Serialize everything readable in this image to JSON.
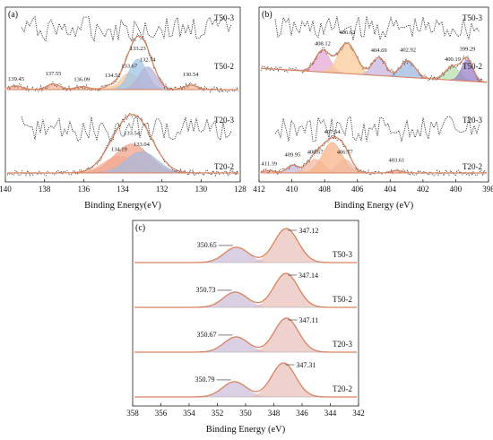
{
  "chart_data": [
    {
      "panel": "(a)",
      "type": "line",
      "xlabel": "Binding Energy(eV)",
      "xlim": [
        140,
        128
      ],
      "x_ticks": [
        140,
        138,
        136,
        134,
        132,
        130,
        128
      ],
      "series": [
        {
          "name": "T50-3",
          "fit": false,
          "peaks": []
        },
        {
          "name": "T50-2",
          "fit": true,
          "peaks": [
            {
              "label": "139.45",
              "center": 139.45,
              "height": 0.12,
              "width": 0.35,
              "color": "#f2b8a0"
            },
            {
              "label": "137.55",
              "center": 137.55,
              "height": 0.18,
              "width": 0.35,
              "color": "#f2b8a0"
            },
            {
              "label": "136.09",
              "center": 136.09,
              "height": 0.1,
              "width": 0.35,
              "color": "#f7c9a8"
            },
            {
              "label": "134.52",
              "center": 134.52,
              "height": 0.12,
              "width": 0.4,
              "color": "#f7d4b0"
            },
            {
              "label": "133.67",
              "center": 133.67,
              "height": 0.55,
              "width": 0.45,
              "color": "#f9c99a"
            },
            {
              "label": "133.23",
              "center": 133.23,
              "height": 1.0,
              "width": 0.45,
              "color": "#9fc6e6"
            },
            {
              "label": "132.74",
              "center": 132.74,
              "height": 0.75,
              "width": 0.45,
              "color": "#b7b3d8"
            },
            {
              "label": "130.54",
              "center": 130.54,
              "height": 0.15,
              "width": 0.35,
              "color": "#f2b8a0"
            }
          ]
        },
        {
          "name": "T20-3",
          "fit": false,
          "peaks": []
        },
        {
          "name": "T20-2",
          "fit": true,
          "peaks": [
            {
              "label": "134.19",
              "center": 134.19,
              "height": 0.55,
              "width": 0.8,
              "color": "#f6b7a0"
            },
            {
              "label": "133.54",
              "center": 133.54,
              "height": 0.95,
              "width": 0.9,
              "color": "#f0a48c"
            },
            {
              "label": "133.04",
              "center": 133.04,
              "height": 0.7,
              "width": 0.8,
              "color": "#a9b8dc"
            }
          ]
        }
      ]
    },
    {
      "panel": "(b)",
      "type": "line",
      "xlabel": "Binding Energy (eV)",
      "xlim": [
        412,
        398
      ],
      "x_ticks": [
        412,
        410,
        408,
        406,
        404,
        402,
        400,
        398
      ],
      "series": [
        {
          "name": "T50-3",
          "fit": false,
          "peaks": []
        },
        {
          "name": "T50-2",
          "fit": true,
          "peaks": [
            {
              "label": "408.12",
              "center": 408.12,
              "height": 0.7,
              "width": 0.45,
              "color": "#e6a8d6"
            },
            {
              "label": "406.62",
              "center": 406.62,
              "height": 1.0,
              "width": 0.55,
              "color": "#f9c99a"
            },
            {
              "label": "404.69",
              "center": 404.69,
              "height": 0.6,
              "width": 0.4,
              "color": "#c9b5e0"
            },
            {
              "label": "402.92",
              "center": 402.92,
              "height": 0.55,
              "width": 0.45,
              "color": "#9fb8e0"
            },
            {
              "label": "400.19",
              "center": 400.19,
              "height": 0.45,
              "width": 0.45,
              "color": "#b9e0b0"
            },
            {
              "label": "399.29",
              "center": 399.29,
              "height": 0.7,
              "width": 0.35,
              "color": "#9a7fc8"
            }
          ]
        },
        {
          "name": "T20-3",
          "fit": false,
          "peaks": []
        },
        {
          "name": "T20-2",
          "fit": true,
          "peaks": [
            {
              "label": "411.39",
              "center": 411.39,
              "height": 0.08,
              "width": 0.35,
              "color": "#f2b8a0"
            },
            {
              "label": "409.95",
              "center": 409.95,
              "height": 0.25,
              "width": 0.35,
              "color": "#c9b5e0"
            },
            {
              "label": "408.57",
              "center": 408.57,
              "height": 0.45,
              "width": 0.5,
              "color": "#f2b8a0"
            },
            {
              "label": "407.54",
              "center": 407.54,
              "height": 1.0,
              "width": 0.6,
              "color": "#f7b48a"
            },
            {
              "label": "406.77",
              "center": 406.77,
              "height": 0.45,
              "width": 0.45,
              "color": "#f2b8a0"
            },
            {
              "label": "403.61",
              "center": 403.61,
              "height": 0.08,
              "width": 0.35,
              "color": "#f2b8a0"
            }
          ]
        }
      ]
    },
    {
      "panel": "(c)",
      "type": "line",
      "xlabel": "Binding Energy (eV)",
      "xlim": [
        358,
        342
      ],
      "x_ticks": [
        358,
        356,
        354,
        352,
        350,
        348,
        346,
        344,
        342
      ],
      "series": [
        {
          "name": "T50-3",
          "peaks": [
            {
              "label": "350.65",
              "center": 350.65,
              "height": 0.45,
              "width": 0.85
            },
            {
              "label": "347.12",
              "center": 347.12,
              "height": 1.0,
              "width": 0.85
            }
          ]
        },
        {
          "name": "T50-2",
          "peaks": [
            {
              "label": "350.73",
              "center": 350.73,
              "height": 0.45,
              "width": 0.85
            },
            {
              "label": "347.14",
              "center": 347.14,
              "height": 1.0,
              "width": 0.85
            }
          ]
        },
        {
          "name": "T20-3",
          "peaks": [
            {
              "label": "350.67",
              "center": 350.67,
              "height": 0.45,
              "width": 0.85
            },
            {
              "label": "347.11",
              "center": 347.11,
              "height": 1.0,
              "width": 0.85
            }
          ]
        },
        {
          "name": "T20-2",
          "peaks": [
            {
              "label": "350.79",
              "center": 350.79,
              "height": 0.45,
              "width": 0.85
            },
            {
              "label": "347.31",
              "center": 347.31,
              "height": 1.0,
              "width": 0.85
            }
          ]
        }
      ]
    }
  ]
}
